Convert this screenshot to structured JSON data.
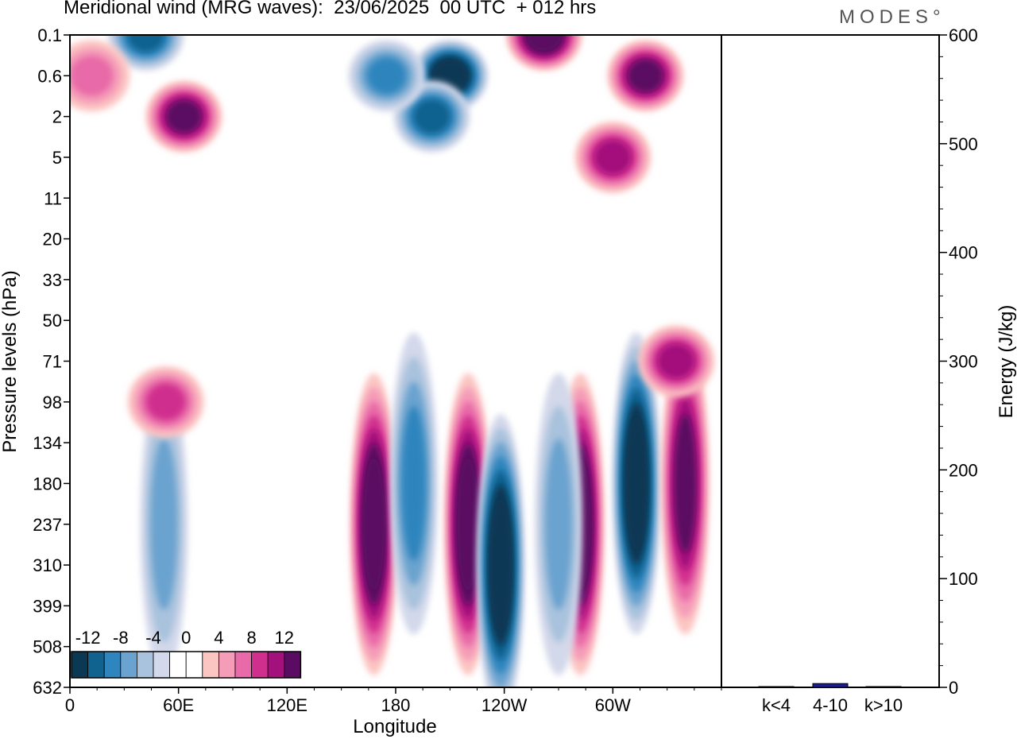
{
  "header": {
    "title": "Meridional wind (MRG waves):  23/06/2025  00 UTC  + 012 hrs",
    "logo": "MODES°"
  },
  "chart_data": [
    {
      "type": "heatmap",
      "xlabel": "Longitude",
      "ylabel": "Pressure levels (hPa)",
      "x_ticks": [
        "0",
        "60E",
        "120E",
        "180",
        "120W",
        "60W"
      ],
      "x_tick_degrees": [
        0,
        60,
        120,
        180,
        240,
        300
      ],
      "xlim": [
        0,
        360
      ],
      "y_ticks": [
        "0.1",
        "0.6",
        "2",
        "5",
        "11",
        "20",
        "33",
        "50",
        "71",
        "98",
        "134",
        "180",
        "237",
        "310",
        "399",
        "508",
        "632"
      ],
      "colorbar": {
        "labels": [
          "-12",
          "-8",
          "-4",
          "0",
          "4",
          "8",
          "12"
        ],
        "colors": [
          "#0b3954",
          "#10628f",
          "#2f85bd",
          "#6aa3cf",
          "#a9c2dd",
          "#d3d8ea",
          "#ffffff",
          "#ffffff",
          "#fbc5c2",
          "#f59cb8",
          "#e86aa8",
          "#d02f8e",
          "#a3117c",
          "#5a0b62"
        ]
      },
      "features": [
        {
          "lon": 168,
          "level": "237",
          "value": 14
        },
        {
          "lon": 190,
          "level": "180",
          "value": -8
        },
        {
          "lon": 220,
          "level": "237",
          "value": 14
        },
        {
          "lon": 238,
          "level": "310",
          "value": -14
        },
        {
          "lon": 282,
          "level": "237",
          "value": 14
        },
        {
          "lon": 313,
          "level": "180",
          "value": -14
        },
        {
          "lon": 340,
          "level": "180",
          "value": 12
        },
        {
          "lon": 52,
          "level": "237",
          "value": -6
        },
        {
          "lon": 270,
          "level": "237",
          "value": -6
        },
        {
          "lon": 53,
          "level": "98",
          "value": 7
        },
        {
          "lon": 335,
          "level": "71",
          "value": 9
        },
        {
          "lon": 63,
          "level": "2",
          "value": 11
        },
        {
          "lon": 210,
          "level": "0.6",
          "value": -14
        },
        {
          "lon": 262,
          "level": "0.1",
          "value": 14
        },
        {
          "lon": 318,
          "level": "0.6",
          "value": 12
        },
        {
          "lon": 300,
          "level": "5",
          "value": 10
        },
        {
          "lon": 42,
          "level": "0.1",
          "value": -9
        },
        {
          "lon": 200,
          "level": "2",
          "value": -10
        },
        {
          "lon": 175,
          "level": "0.6",
          "value": -8
        },
        {
          "lon": 12,
          "level": "0.6",
          "value": 6
        }
      ]
    },
    {
      "type": "bar",
      "categories": [
        "k<4",
        "4-10",
        "k>10"
      ],
      "values": [
        0.5,
        3.5,
        0.5
      ],
      "ylabel": "Energy (J/kg)",
      "ylim": [
        0,
        600
      ],
      "y_ticks": [
        0,
        100,
        200,
        300,
        400,
        500,
        600
      ],
      "bar_color": "#1a1a9e"
    }
  ]
}
